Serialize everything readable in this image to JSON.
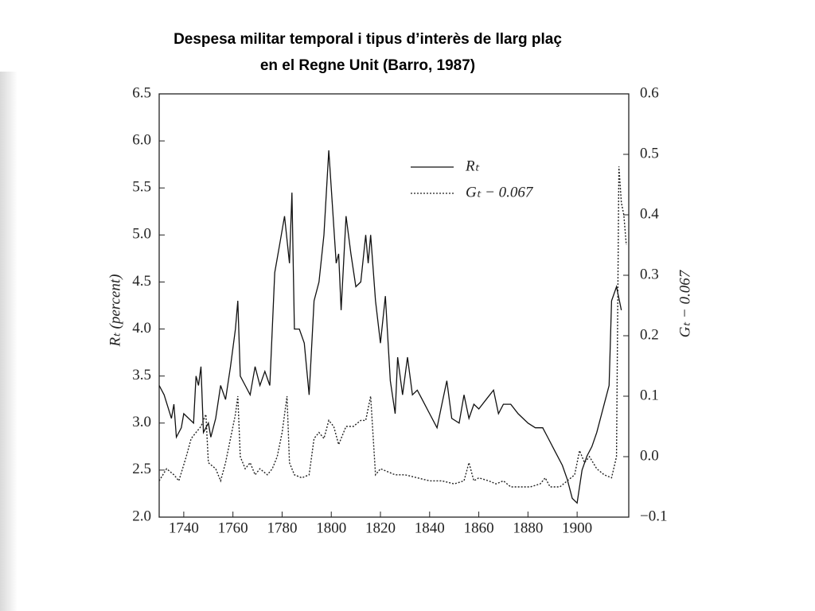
{
  "chart_data": {
    "type": "line",
    "title": [
      "Despesa militar temporal i tipus d’interès de llarg plaç",
      "en el Regne Unit (Barro, 1987)"
    ],
    "y_label": "Rₜ (percent)",
    "y2_label": "Gₜ − 0.067",
    "xlim": [
      1730,
      1921
    ],
    "xticks": [
      1740,
      1760,
      1780,
      1800,
      1820,
      1840,
      1860,
      1880,
      1900
    ],
    "ylim": [
      2.0,
      6.5
    ],
    "yticks": [
      {
        "value": 2.0,
        "label": "2.0"
      },
      2.5,
      {
        "value": 3.0,
        "label": "3.0"
      },
      3.5,
      {
        "value": 4.0,
        "label": "4.0"
      },
      4.5,
      {
        "value": 5.0,
        "label": "5.0"
      },
      5.5,
      {
        "value": 6.0,
        "label": "6.0"
      },
      6.5
    ],
    "y2lim": [
      -0.1,
      0.6
    ],
    "y2ticks": [
      {
        "value": -0.1,
        "label": "−0.1"
      },
      {
        "value": 0.0,
        "label": "0.0"
      },
      0.1,
      0.2,
      0.3,
      0.4,
      0.5,
      0.6
    ],
    "series": [
      {
        "name": "Rₜ",
        "color": "#111111",
        "dash": "solid",
        "x": [
          1730,
          1732,
          1735,
          1736,
          1737,
          1739,
          1740,
          1744,
          1745,
          1746,
          1747,
          1748,
          1750,
          1751,
          1753,
          1755,
          1757,
          1759,
          1761,
          1762,
          1763,
          1765,
          1767,
          1769,
          1771,
          1773,
          1775,
          1777,
          1779,
          1781,
          1783,
          1784,
          1785,
          1787,
          1789,
          1791,
          1793,
          1795,
          1797,
          1799,
          1800,
          1802,
          1803,
          1804,
          1806,
          1808,
          1810,
          1812,
          1814,
          1815,
          1816,
          1818,
          1820,
          1822,
          1824,
          1826,
          1827,
          1829,
          1831,
          1833,
          1835,
          1837,
          1840,
          1843,
          1845,
          1847,
          1849,
          1852,
          1854,
          1856,
          1858,
          1860,
          1863,
          1866,
          1868,
          1870,
          1873,
          1876,
          1880,
          1883,
          1886,
          1888,
          1891,
          1894,
          1896,
          1898,
          1900,
          1902,
          1904,
          1906,
          1908,
          1911,
          1913,
          1914,
          1916,
          1918
        ],
        "values": [
          3.4,
          3.3,
          3.05,
          3.2,
          2.85,
          2.95,
          3.1,
          3.0,
          3.5,
          3.4,
          3.6,
          2.9,
          3.0,
          2.85,
          3.05,
          3.4,
          3.25,
          3.6,
          4.0,
          4.3,
          3.5,
          3.4,
          3.3,
          3.6,
          3.4,
          3.55,
          3.4,
          4.6,
          4.9,
          5.2,
          4.7,
          5.45,
          4.0,
          4.0,
          3.85,
          3.3,
          4.3,
          4.5,
          5.0,
          5.9,
          5.5,
          4.7,
          4.8,
          4.2,
          5.2,
          4.8,
          4.45,
          4.5,
          5.0,
          4.7,
          5.0,
          4.3,
          3.85,
          4.35,
          3.45,
          3.1,
          3.7,
          3.3,
          3.7,
          3.3,
          3.35,
          3.25,
          3.1,
          2.95,
          3.2,
          3.45,
          3.05,
          3.0,
          3.3,
          3.05,
          3.2,
          3.15,
          3.25,
          3.35,
          3.1,
          3.2,
          3.2,
          3.1,
          3.0,
          2.95,
          2.95,
          2.85,
          2.7,
          2.55,
          2.4,
          2.2,
          2.15,
          2.5,
          2.65,
          2.75,
          2.9,
          3.2,
          3.4,
          4.3,
          4.45,
          4.2
        ]
      },
      {
        "name": "Gₜ − 0.067",
        "color": "#222222",
        "dash": "dotted",
        "axis": "y2",
        "x": [
          1730,
          1733,
          1736,
          1738,
          1741,
          1743,
          1745,
          1747,
          1749,
          1750,
          1753,
          1755,
          1757,
          1759,
          1761,
          1762,
          1763,
          1765,
          1767,
          1769,
          1771,
          1774,
          1776,
          1778,
          1780,
          1782,
          1783,
          1785,
          1788,
          1791,
          1793,
          1795,
          1797,
          1799,
          1801,
          1803,
          1806,
          1809,
          1812,
          1814,
          1816,
          1818,
          1820,
          1823,
          1826,
          1830,
          1835,
          1840,
          1845,
          1850,
          1854,
          1856,
          1858,
          1860,
          1864,
          1867,
          1870,
          1873,
          1877,
          1881,
          1885,
          1887,
          1889,
          1893,
          1896,
          1899,
          1901,
          1903,
          1905,
          1908,
          1911,
          1914,
          1916,
          1917,
          1918,
          1919,
          1920
        ],
        "values": [
          -0.04,
          -0.02,
          -0.03,
          -0.04,
          0.0,
          0.03,
          0.04,
          0.05,
          0.07,
          -0.01,
          -0.02,
          -0.04,
          -0.01,
          0.03,
          0.07,
          0.1,
          0.0,
          -0.02,
          -0.01,
          -0.03,
          -0.02,
          -0.03,
          -0.02,
          0.0,
          0.04,
          0.1,
          -0.01,
          -0.03,
          -0.035,
          -0.03,
          0.03,
          0.04,
          0.03,
          0.06,
          0.05,
          0.02,
          0.05,
          0.05,
          0.06,
          0.06,
          0.1,
          -0.03,
          -0.02,
          -0.025,
          -0.03,
          -0.03,
          -0.035,
          -0.04,
          -0.04,
          -0.045,
          -0.04,
          -0.01,
          -0.04,
          -0.035,
          -0.04,
          -0.045,
          -0.04,
          -0.05,
          -0.05,
          -0.05,
          -0.045,
          -0.035,
          -0.05,
          -0.05,
          -0.04,
          -0.03,
          0.01,
          -0.01,
          0.0,
          -0.02,
          -0.03,
          -0.035,
          0.0,
          0.48,
          0.42,
          0.4,
          0.35
        ]
      }
    ]
  }
}
